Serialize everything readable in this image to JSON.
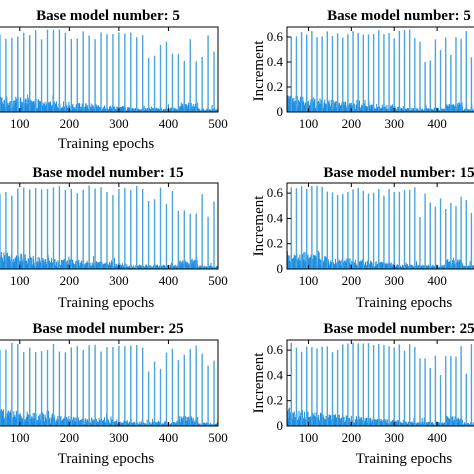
{
  "chart_data": [
    {
      "type": "bar",
      "title": "Base model number: 5",
      "xlabel": "Training epochs",
      "ylabel": "",
      "xlim": [
        50,
        500
      ],
      "ylim": [
        0,
        0.68
      ],
      "xticks": [
        100,
        200,
        300,
        400,
        500
      ],
      "yticks": [],
      "color": "#1f8fe5",
      "spike_color": "#4aa6dd"
    },
    {
      "type": "bar",
      "title": "Base model number: 5",
      "xlabel": "",
      "ylabel": "Increment",
      "xlim": [
        50,
        500
      ],
      "ylim": [
        0,
        0.68
      ],
      "xticks": [
        100,
        200,
        300,
        400
      ],
      "yticks": [
        0,
        0.2,
        0.4,
        0.6
      ],
      "color": "#1f8fe5",
      "spike_color": "#4aa6dd"
    },
    {
      "type": "bar",
      "title": "Base model number: 15",
      "xlabel": "Training epochs",
      "ylabel": "",
      "xlim": [
        50,
        500
      ],
      "ylim": [
        0,
        0.68
      ],
      "xticks": [
        100,
        200,
        300,
        400,
        500
      ],
      "yticks": [],
      "color": "#1f8fe5",
      "spike_color": "#4aa6dd"
    },
    {
      "type": "bar",
      "title": "Base model number: 15",
      "xlabel": "Training epochs",
      "ylabel": "Increment",
      "xlim": [
        50,
        500
      ],
      "ylim": [
        0,
        0.68
      ],
      "xticks": [
        100,
        200,
        300,
        400
      ],
      "yticks": [
        0,
        0.2,
        0.4,
        0.6
      ],
      "color": "#1f8fe5",
      "spike_color": "#4aa6dd"
    },
    {
      "type": "bar",
      "title": "Base model number: 25",
      "xlabel": "Training epochs",
      "ylabel": "",
      "xlim": [
        50,
        500
      ],
      "ylim": [
        0,
        0.68
      ],
      "xticks": [
        100,
        200,
        300,
        400,
        500
      ],
      "yticks": [],
      "color": "#1f8fe5",
      "spike_color": "#4aa6dd"
    },
    {
      "type": "bar",
      "title": "Base model number: 25",
      "xlabel": "Training epochs",
      "ylabel": "Increment",
      "xlim": [
        50,
        500
      ],
      "ylim": [
        0,
        0.68
      ],
      "xticks": [
        100,
        200,
        300,
        400
      ],
      "yticks": [
        0,
        0.2,
        0.4,
        0.6
      ],
      "color": "#1f8fe5",
      "spike_color": "#4aa6dd"
    }
  ]
}
